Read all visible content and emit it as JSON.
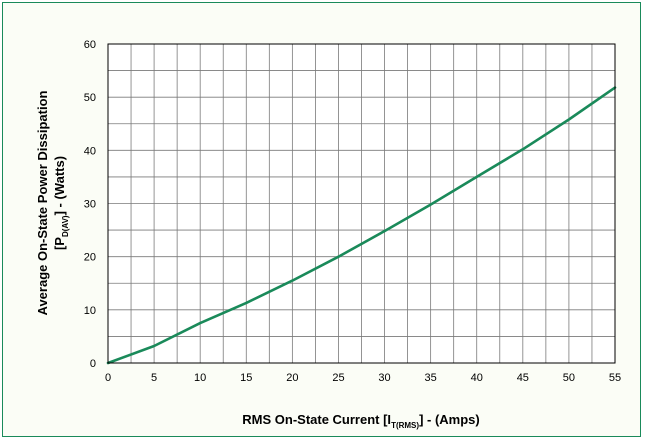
{
  "chart_data": {
    "type": "line",
    "xlabel": {
      "main": "RMS On-State Current [I",
      "sub": "T(RMS)",
      "tail": "] - (Amps)"
    },
    "ylabel": {
      "line1": "Average On-State Power Dissipation",
      "line2": {
        "main": "[P",
        "sub": "D(AV)",
        "tail": "] - (Watts)"
      }
    },
    "xlim": [
      0,
      55
    ],
    "ylim": [
      0,
      60
    ],
    "x_ticks": [
      0,
      5,
      10,
      15,
      20,
      25,
      30,
      35,
      40,
      45,
      50,
      55
    ],
    "y_ticks": [
      0,
      10,
      20,
      30,
      40,
      50,
      60
    ],
    "x_minor_step": 2.5,
    "y_minor_step": 5,
    "grid": true,
    "series": [
      {
        "color": "#1a8a5a",
        "x": [
          0,
          5,
          10,
          15,
          20,
          25,
          30,
          35,
          40,
          45,
          50,
          55
        ],
        "y": [
          0,
          3.2,
          7.5,
          11.3,
          15.5,
          20.0,
          24.8,
          29.8,
          35.0,
          40.2,
          45.8,
          51.8
        ]
      }
    ]
  }
}
